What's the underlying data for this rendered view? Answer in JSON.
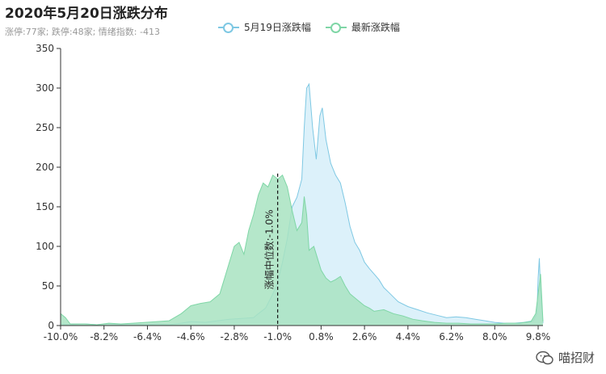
{
  "title": "2020年5月20日涨跌分布",
  "subtitle": "涨停:77家; 跌停:48家; 情绪指数: -413",
  "watermark": "喵招财",
  "colors": {
    "prev": "#7ec8e3",
    "prev_fill": "#d6eef9",
    "latest": "#7fd6a6",
    "latest_fill": "#a8e3c1"
  },
  "chart_data": {
    "type": "area",
    "xlim": [
      -10.0,
      10.0
    ],
    "ylim": [
      0,
      350
    ],
    "yticks": [
      0,
      50,
      100,
      150,
      200,
      250,
      300,
      350
    ],
    "xticks": [
      -10.0,
      -8.2,
      -6.4,
      -4.6,
      -2.8,
      -1.0,
      0.8,
      2.6,
      4.4,
      6.2,
      8.0,
      9.8
    ],
    "xtick_labels": [
      "-10.0%",
      "-8.2%",
      "-6.4%",
      "-4.6%",
      "-2.8%",
      "-1.0%",
      "0.8%",
      "2.6%",
      "4.4%",
      "6.2%",
      "8.0%",
      "9.8%"
    ],
    "median": {
      "x": -1.0,
      "y": 192,
      "label": "涨幅中位数:-1.0%"
    },
    "series": [
      {
        "name": "5月19日涨跌幅",
        "points": [
          [
            -10.0,
            2
          ],
          [
            -9.5,
            1
          ],
          [
            -9.0,
            2
          ],
          [
            -8.5,
            1
          ],
          [
            -8.0,
            2
          ],
          [
            -7.5,
            1
          ],
          [
            -7.0,
            2
          ],
          [
            -6.5,
            1
          ],
          [
            -6.0,
            2
          ],
          [
            -5.5,
            1
          ],
          [
            -5.0,
            3
          ],
          [
            -4.6,
            5
          ],
          [
            -4.0,
            4
          ],
          [
            -3.5,
            6
          ],
          [
            -3.0,
            8
          ],
          [
            -2.5,
            9
          ],
          [
            -2.0,
            10
          ],
          [
            -1.8,
            15
          ],
          [
            -1.5,
            22
          ],
          [
            -1.2,
            40
          ],
          [
            -1.0,
            55
          ],
          [
            -0.8,
            80
          ],
          [
            -0.6,
            110
          ],
          [
            -0.4,
            150
          ],
          [
            -0.2,
            162
          ],
          [
            0.0,
            185
          ],
          [
            0.1,
            250
          ],
          [
            0.2,
            300
          ],
          [
            0.3,
            305
          ],
          [
            0.45,
            250
          ],
          [
            0.6,
            210
          ],
          [
            0.75,
            265
          ],
          [
            0.85,
            275
          ],
          [
            1.0,
            235
          ],
          [
            1.2,
            205
          ],
          [
            1.4,
            190
          ],
          [
            1.6,
            180
          ],
          [
            1.8,
            155
          ],
          [
            2.0,
            125
          ],
          [
            2.2,
            105
          ],
          [
            2.4,
            95
          ],
          [
            2.6,
            80
          ],
          [
            2.8,
            72
          ],
          [
            3.0,
            65
          ],
          [
            3.2,
            58
          ],
          [
            3.4,
            48
          ],
          [
            3.6,
            42
          ],
          [
            3.8,
            36
          ],
          [
            4.0,
            30
          ],
          [
            4.4,
            24
          ],
          [
            4.8,
            20
          ],
          [
            5.2,
            16
          ],
          [
            5.6,
            13
          ],
          [
            6.0,
            10
          ],
          [
            6.4,
            11
          ],
          [
            6.8,
            10
          ],
          [
            7.2,
            8
          ],
          [
            7.6,
            6
          ],
          [
            8.0,
            4
          ],
          [
            8.4,
            3
          ],
          [
            8.8,
            3
          ],
          [
            9.2,
            4
          ],
          [
            9.6,
            6
          ],
          [
            9.75,
            15
          ],
          [
            9.8,
            60
          ],
          [
            9.85,
            85
          ],
          [
            9.9,
            45
          ],
          [
            10.0,
            3
          ]
        ]
      },
      {
        "name": "最新涨跌幅",
        "points": [
          [
            -10.0,
            15
          ],
          [
            -9.8,
            10
          ],
          [
            -9.6,
            2
          ],
          [
            -9.0,
            2
          ],
          [
            -8.5,
            1
          ],
          [
            -8.0,
            3
          ],
          [
            -7.5,
            2
          ],
          [
            -7.0,
            3
          ],
          [
            -6.5,
            4
          ],
          [
            -6.0,
            5
          ],
          [
            -5.5,
            6
          ],
          [
            -5.0,
            15
          ],
          [
            -4.6,
            25
          ],
          [
            -4.2,
            28
          ],
          [
            -3.8,
            30
          ],
          [
            -3.4,
            40
          ],
          [
            -3.2,
            60
          ],
          [
            -3.0,
            80
          ],
          [
            -2.8,
            100
          ],
          [
            -2.6,
            105
          ],
          [
            -2.4,
            90
          ],
          [
            -2.2,
            120
          ],
          [
            -2.0,
            140
          ],
          [
            -1.8,
            165
          ],
          [
            -1.6,
            180
          ],
          [
            -1.4,
            175
          ],
          [
            -1.2,
            190
          ],
          [
            -1.0,
            185
          ],
          [
            -0.8,
            190
          ],
          [
            -0.6,
            175
          ],
          [
            -0.4,
            145
          ],
          [
            -0.2,
            120
          ],
          [
            0.0,
            130
          ],
          [
            0.1,
            163
          ],
          [
            0.2,
            140
          ],
          [
            0.3,
            95
          ],
          [
            0.5,
            100
          ],
          [
            0.6,
            90
          ],
          [
            0.8,
            70
          ],
          [
            1.0,
            60
          ],
          [
            1.2,
            55
          ],
          [
            1.4,
            58
          ],
          [
            1.6,
            62
          ],
          [
            1.8,
            50
          ],
          [
            2.0,
            40
          ],
          [
            2.2,
            35
          ],
          [
            2.4,
            30
          ],
          [
            2.6,
            25
          ],
          [
            2.8,
            22
          ],
          [
            3.0,
            18
          ],
          [
            3.4,
            20
          ],
          [
            3.8,
            15
          ],
          [
            4.2,
            12
          ],
          [
            4.6,
            8
          ],
          [
            5.0,
            6
          ],
          [
            5.5,
            4
          ],
          [
            6.0,
            3
          ],
          [
            6.5,
            3
          ],
          [
            7.0,
            2
          ],
          [
            7.5,
            2
          ],
          [
            8.0,
            2
          ],
          [
            8.5,
            3
          ],
          [
            9.0,
            3
          ],
          [
            9.5,
            5
          ],
          [
            9.7,
            15
          ],
          [
            9.8,
            40
          ],
          [
            9.9,
            65
          ],
          [
            10.0,
            5
          ]
        ]
      }
    ]
  }
}
